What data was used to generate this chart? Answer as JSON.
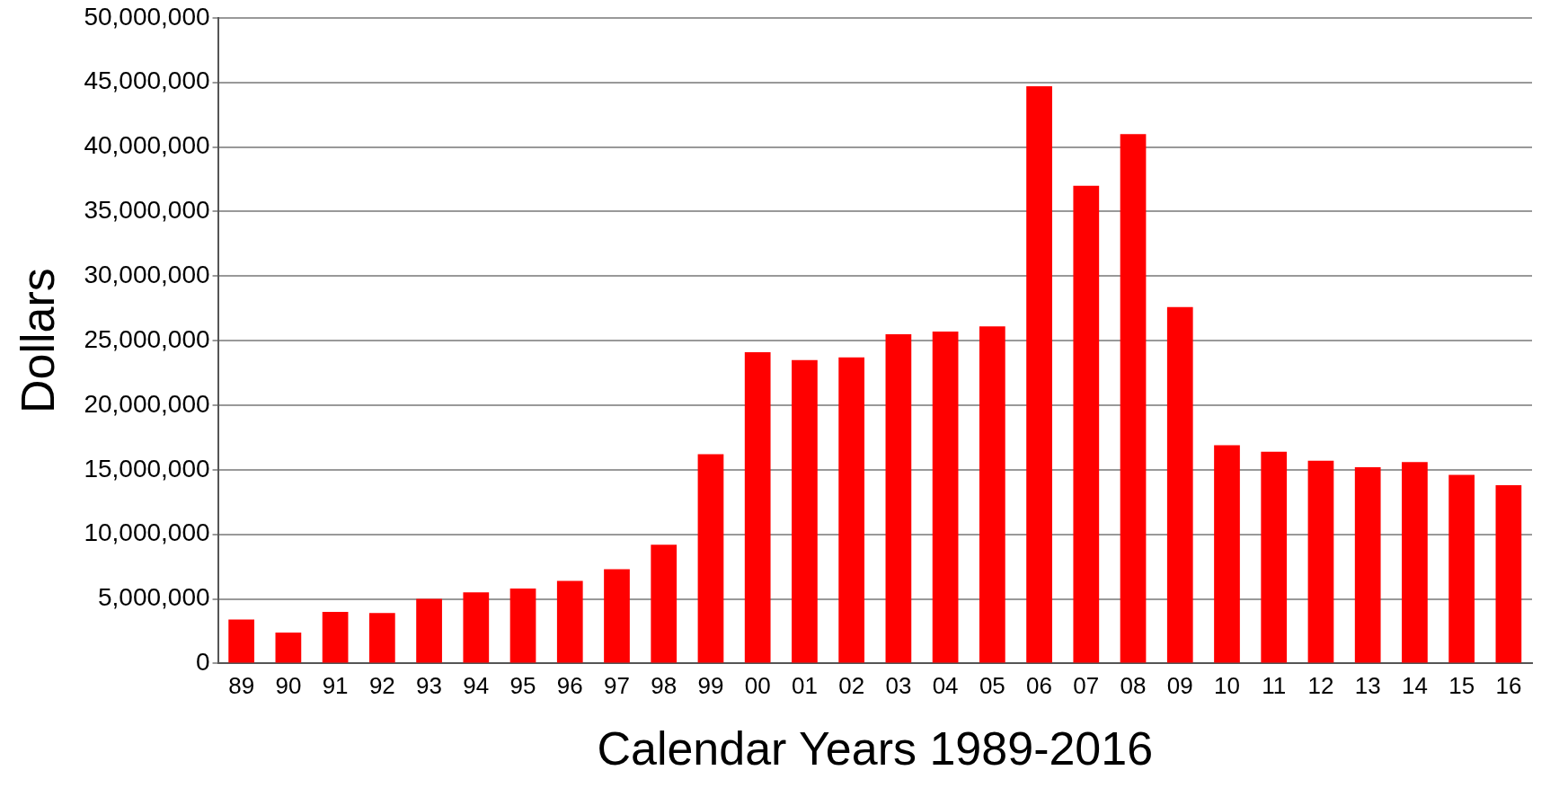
{
  "chart_data": {
    "type": "bar",
    "xlabel": "Calendar Years 1989-2016",
    "ylabel": "Dollars",
    "categories": [
      "89",
      "90",
      "91",
      "92",
      "93",
      "94",
      "95",
      "96",
      "97",
      "98",
      "99",
      "00",
      "01",
      "02",
      "03",
      "04",
      "05",
      "06",
      "07",
      "08",
      "09",
      "10",
      "11",
      "12",
      "13",
      "14",
      "15",
      "16"
    ],
    "values": [
      3400000.0,
      2400000.0,
      4000000.0,
      3900000.0,
      5000000.0,
      5500000.0,
      5800000.0,
      6400000.0,
      7300000.0,
      9200000.0,
      16200000.0,
      24100000.0,
      23500000.0,
      23700000.0,
      25500000.0,
      25700000.0,
      26100000.0,
      44700000.0,
      37000000.0,
      41000000.0,
      27600000.0,
      16900000.0,
      16400000.0,
      15700000.0,
      15200000.0,
      15600000.0,
      14600000.0,
      13800000.0
    ],
    "color": "#ff0000",
    "ylim": [
      0,
      50000000
    ],
    "yticks": [
      0,
      {
        "value": 5000000,
        "label": "5,000,000"
      },
      {
        "value": 10000000,
        "label": "10,000,000"
      },
      {
        "value": 15000000,
        "label": "15,000,000"
      },
      {
        "value": 20000000,
        "label": "20,000,000"
      },
      {
        "value": 25000000,
        "label": "25,000,000"
      },
      {
        "value": 30000000,
        "label": "30,000,000"
      },
      {
        "value": 35000000,
        "label": "35,000,000"
      },
      {
        "value": 40000000,
        "label": "40,000,000"
      },
      {
        "value": 45000000,
        "label": "45,000,000"
      },
      {
        "value": 50000000,
        "label": "50,000,000"
      }
    ],
    "grid": "y"
  }
}
